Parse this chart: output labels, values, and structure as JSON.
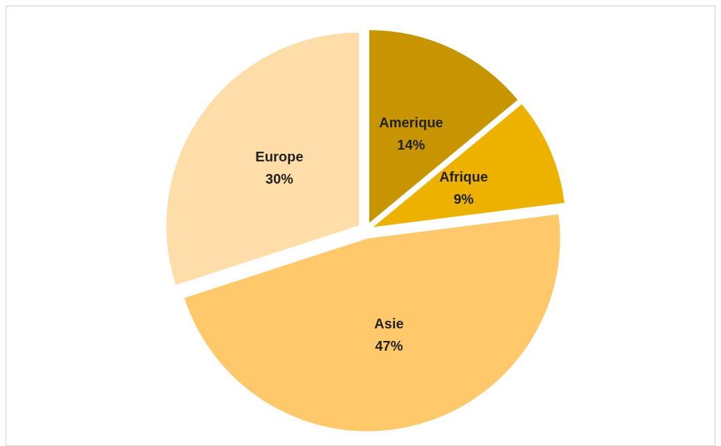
{
  "chart_data": {
    "type": "pie",
    "categories": [
      "Amerique",
      "Afrique",
      "Asie",
      "Europe"
    ],
    "values": [
      14,
      9,
      47,
      30
    ],
    "colors": [
      "#c79500",
      "#edb200",
      "#ffc96b",
      "#ffdda8"
    ],
    "value_labels": [
      "14%",
      "9%",
      "47%",
      "30%"
    ],
    "legend": false
  }
}
